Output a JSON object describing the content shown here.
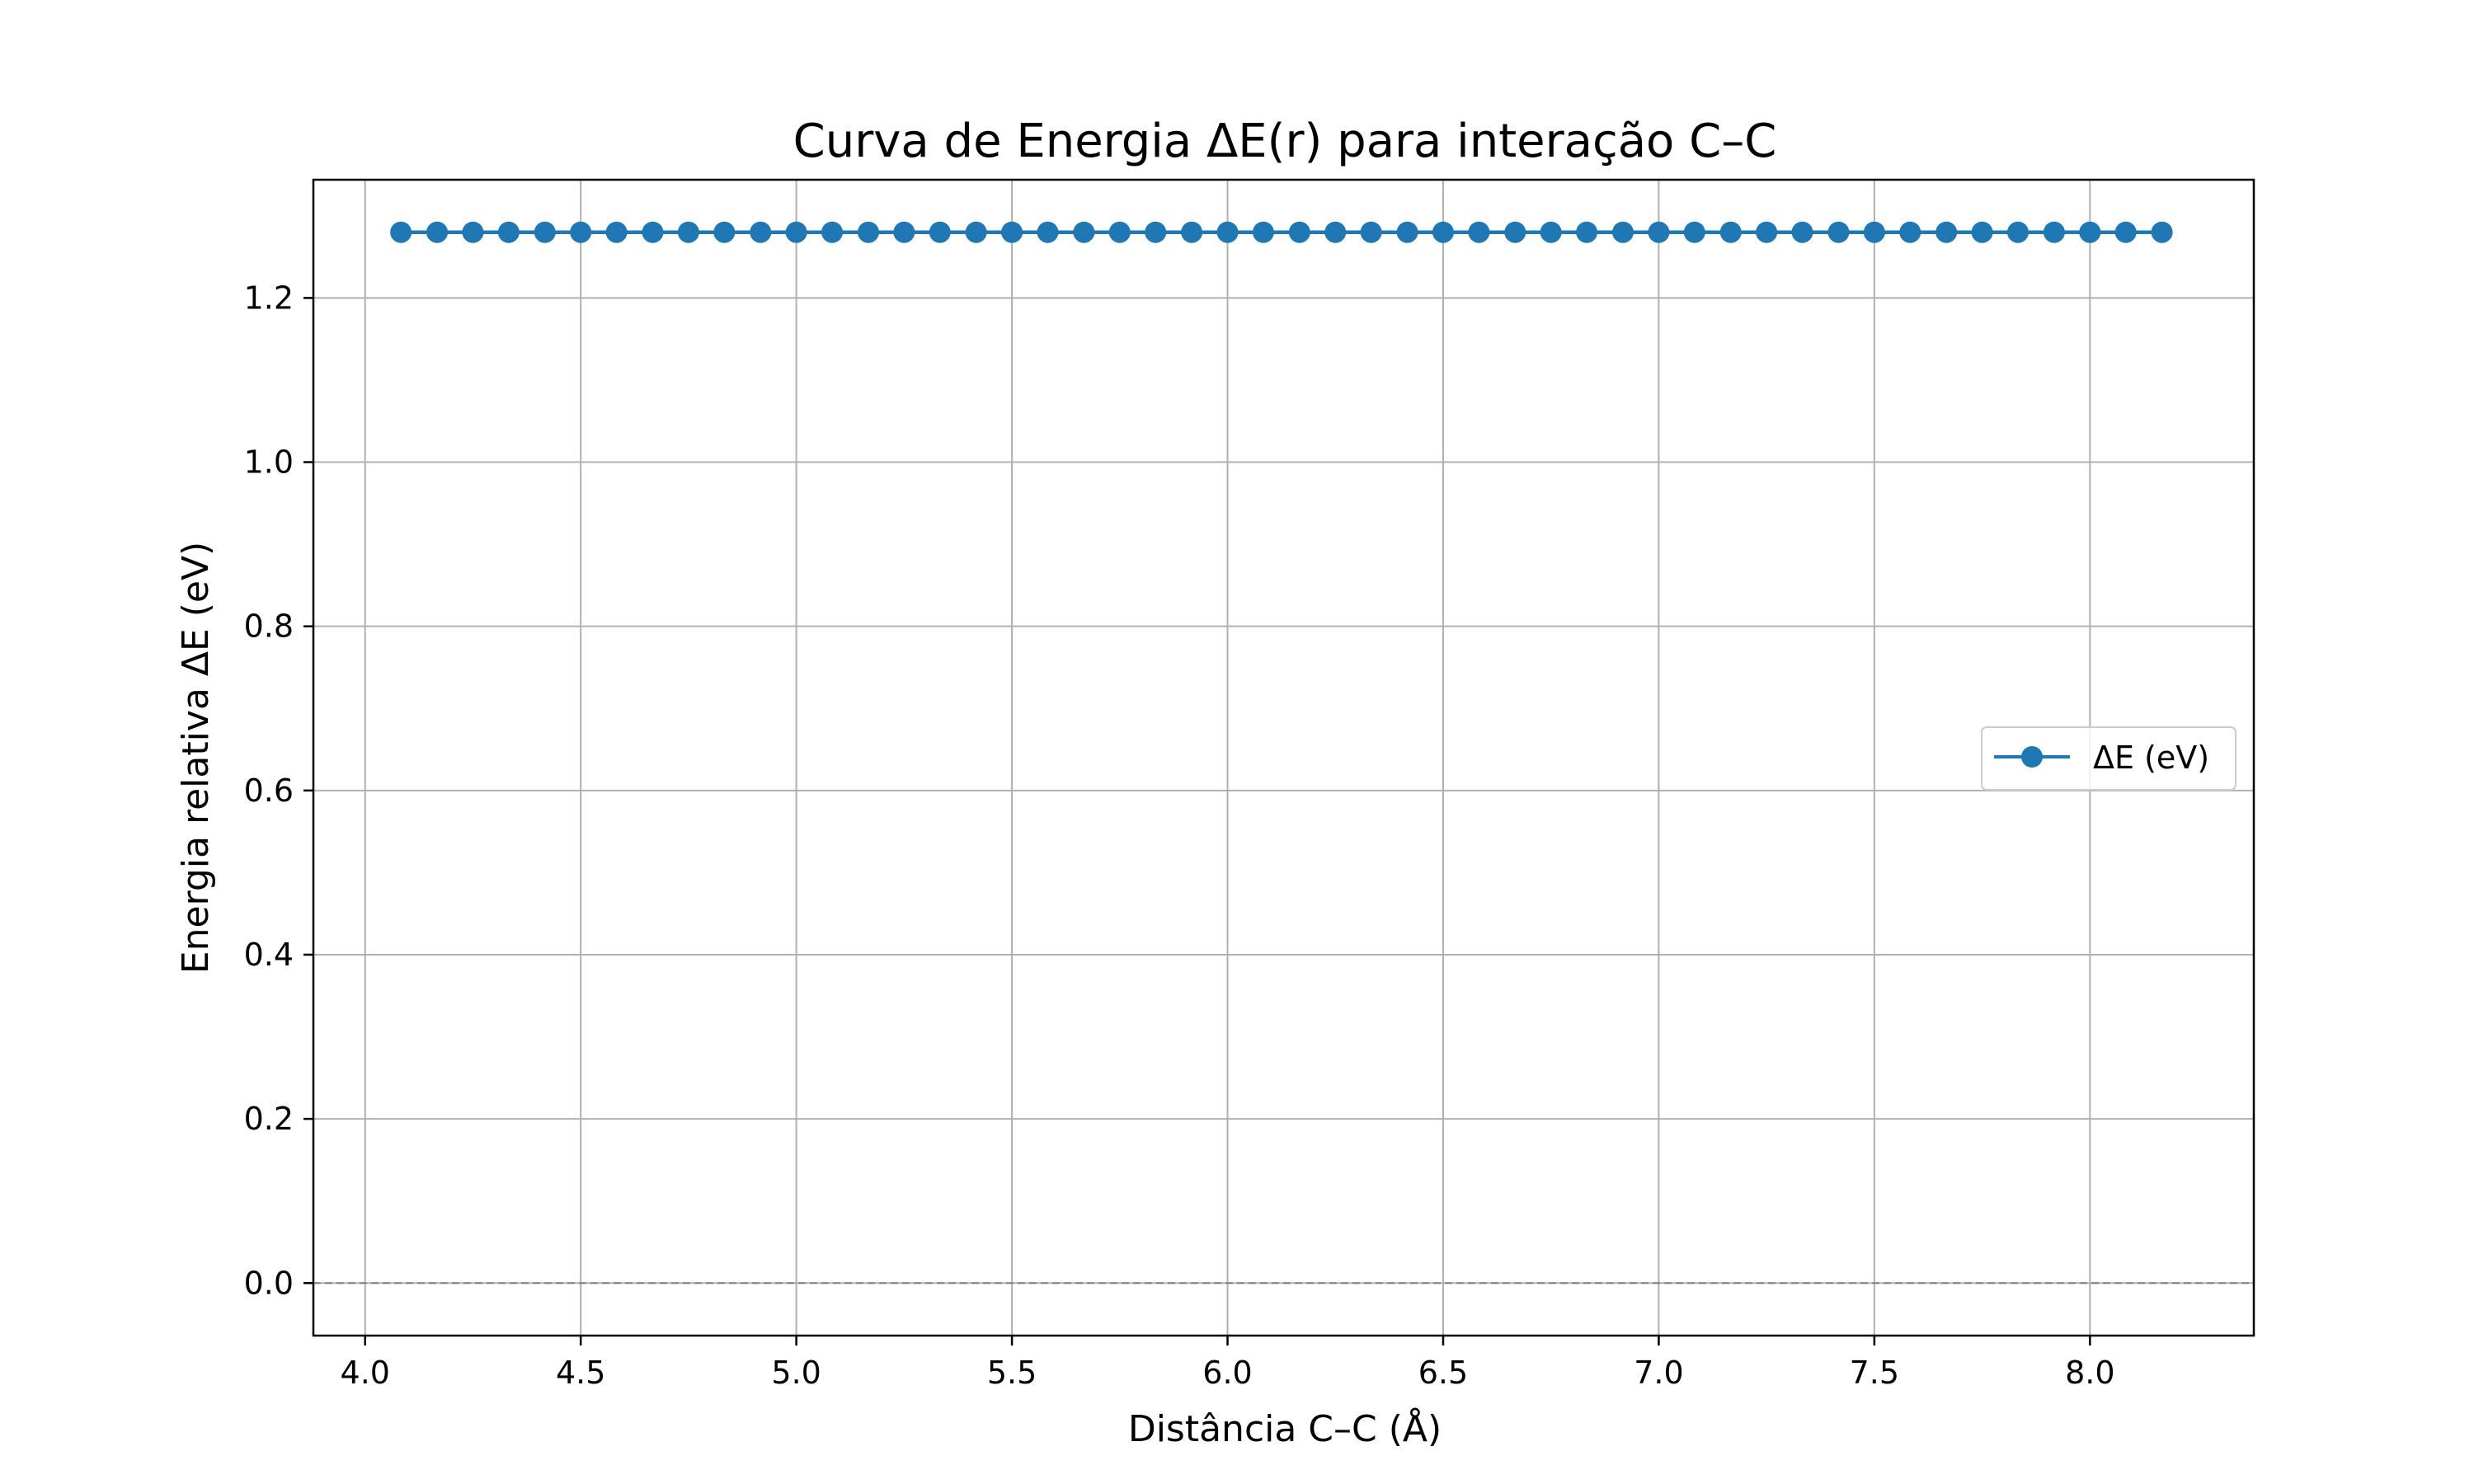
{
  "chart_data": {
    "type": "line",
    "title": "Curva de Energia ΔE(r) para interação C–C",
    "xlabel": "Distância C–C (Å)",
    "ylabel": "Energia relativa ΔE (eV)",
    "xlim": [
      3.88,
      8.38
    ],
    "ylim": [
      -0.064,
      1.344
    ],
    "xticks": [
      4.0,
      4.5,
      5.0,
      5.5,
      6.0,
      6.5,
      7.0,
      7.5,
      8.0
    ],
    "xtick_labels": [
      "4.0",
      "4.5",
      "5.0",
      "5.5",
      "6.0",
      "6.5",
      "7.0",
      "7.5",
      "8.0"
    ],
    "yticks": [
      0.0,
      0.2,
      0.4,
      0.6,
      0.8,
      1.0,
      1.2
    ],
    "ytick_labels": [
      "0.0",
      "0.2",
      "0.4",
      "0.6",
      "0.8",
      "1.0",
      "1.2"
    ],
    "grid": true,
    "legend_position": "center-right",
    "reference_line": {
      "y": 0.0,
      "style": "dashed",
      "color": "#808080"
    },
    "series": [
      {
        "name": "ΔE (eV)",
        "color": "#1f77b4",
        "marker": "circle",
        "x": [
          4.083,
          4.167,
          4.25,
          4.333,
          4.417,
          4.5,
          4.583,
          4.667,
          4.75,
          4.833,
          4.917,
          5.0,
          5.083,
          5.167,
          5.25,
          5.333,
          5.417,
          5.5,
          5.583,
          5.667,
          5.75,
          5.833,
          5.917,
          6.0,
          6.083,
          6.167,
          6.25,
          6.333,
          6.417,
          6.5,
          6.583,
          6.667,
          6.75,
          6.833,
          6.917,
          7.0,
          7.083,
          7.167,
          7.25,
          7.333,
          7.417,
          7.5,
          7.583,
          7.667,
          7.75,
          7.833,
          7.917,
          8.0,
          8.083,
          8.167
        ],
        "y": [
          1.28,
          1.28,
          1.28,
          1.28,
          1.28,
          1.28,
          1.28,
          1.28,
          1.28,
          1.28,
          1.28,
          1.28,
          1.28,
          1.28,
          1.28,
          1.28,
          1.28,
          1.28,
          1.28,
          1.28,
          1.28,
          1.28,
          1.28,
          1.28,
          1.28,
          1.28,
          1.28,
          1.28,
          1.28,
          1.28,
          1.28,
          1.28,
          1.28,
          1.28,
          1.28,
          1.28,
          1.28,
          1.28,
          1.28,
          1.28,
          1.28,
          1.28,
          1.28,
          1.28,
          1.28,
          1.28,
          1.28,
          1.28,
          1.28,
          1.28
        ]
      }
    ]
  }
}
